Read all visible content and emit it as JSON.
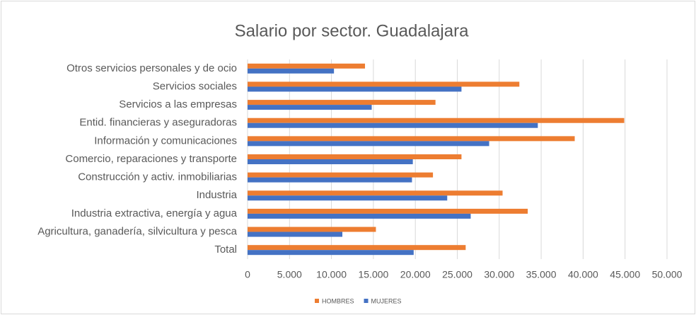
{
  "chart_data": {
    "type": "hbar",
    "title": "Salario por sector. Guadalajara",
    "categories": [
      "Otros servicios personales y de ocio",
      "Servicios sociales",
      "Servicios a las empresas",
      "Entid. financieras y aseguradoras",
      "Información y comunicaciones",
      "Comercio, reparaciones y transporte",
      "Construcción y activ. inmobiliarias",
      "Industria",
      "Industria extractiva, energía y agua",
      "Agricultura, ganadería, silvicultura y pesca",
      "Total"
    ],
    "series": [
      {
        "name": "HOMBRES",
        "color": "#ed7d31",
        "values": [
          14000,
          32400,
          22400,
          44900,
          39000,
          25500,
          22100,
          30400,
          33400,
          15300,
          26000
        ]
      },
      {
        "name": "MUJERES",
        "color": "#4472c4",
        "values": [
          10300,
          25500,
          14800,
          34600,
          28800,
          19700,
          19600,
          23800,
          26600,
          11300,
          19800
        ]
      }
    ],
    "xlim": [
      0,
      50000
    ],
    "xticks": [
      0,
      {
        "value": 5000,
        "label": "5.000"
      },
      {
        "value": 10000,
        "label": "10.000"
      },
      {
        "value": 15000,
        "label": "15.000"
      },
      {
        "value": 20000,
        "label": "20.000"
      },
      {
        "value": 25000,
        "label": "25.000"
      },
      {
        "value": 30000,
        "label": "30.000"
      },
      {
        "value": 35000,
        "label": "35.000"
      },
      {
        "value": 40000,
        "label": "40.000"
      },
      {
        "value": 45000,
        "label": "45.000"
      },
      {
        "value": 50000,
        "label": "50.000"
      }
    ],
    "grid": true,
    "legend": "bottom"
  }
}
